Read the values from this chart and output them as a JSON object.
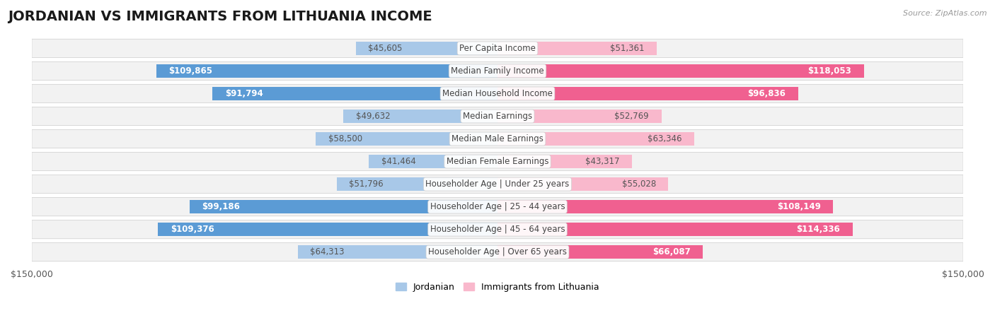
{
  "title": "JORDANIAN VS IMMIGRANTS FROM LITHUANIA INCOME",
  "source": "Source: ZipAtlas.com",
  "categories": [
    "Per Capita Income",
    "Median Family Income",
    "Median Household Income",
    "Median Earnings",
    "Median Male Earnings",
    "Median Female Earnings",
    "Householder Age | Under 25 years",
    "Householder Age | 25 - 44 years",
    "Householder Age | 45 - 64 years",
    "Householder Age | Over 65 years"
  ],
  "jordanian": [
    45605,
    109865,
    91794,
    49632,
    58500,
    41464,
    51796,
    99186,
    109376,
    64313
  ],
  "lithuania": [
    51361,
    118053,
    96836,
    52769,
    63346,
    43317,
    55028,
    108149,
    114336,
    66087
  ],
  "jordanian_labels": [
    "$45,605",
    "$109,865",
    "$91,794",
    "$49,632",
    "$58,500",
    "$41,464",
    "$51,796",
    "$99,186",
    "$109,376",
    "$64,313"
  ],
  "lithuania_labels": [
    "$51,361",
    "$118,053",
    "$96,836",
    "$52,769",
    "$63,346",
    "$43,317",
    "$55,028",
    "$108,149",
    "$114,336",
    "$66,087"
  ],
  "color_jordanian_light": "#a8c8e8",
  "color_jordanian_dark": "#5b9bd5",
  "color_lithuania_light": "#f9b8cc",
  "color_lithuania_dark": "#f06090",
  "row_bg": "#f2f2f2",
  "max_value": 150000,
  "xlabel_left": "$150,000",
  "xlabel_right": "$150,000",
  "legend_jordanian": "Jordanian",
  "legend_lithuania": "Immigrants from Lithuania",
  "title_fontsize": 14,
  "label_fontsize": 8.5,
  "category_fontsize": 8.5,
  "inside_label_threshold": 65000
}
